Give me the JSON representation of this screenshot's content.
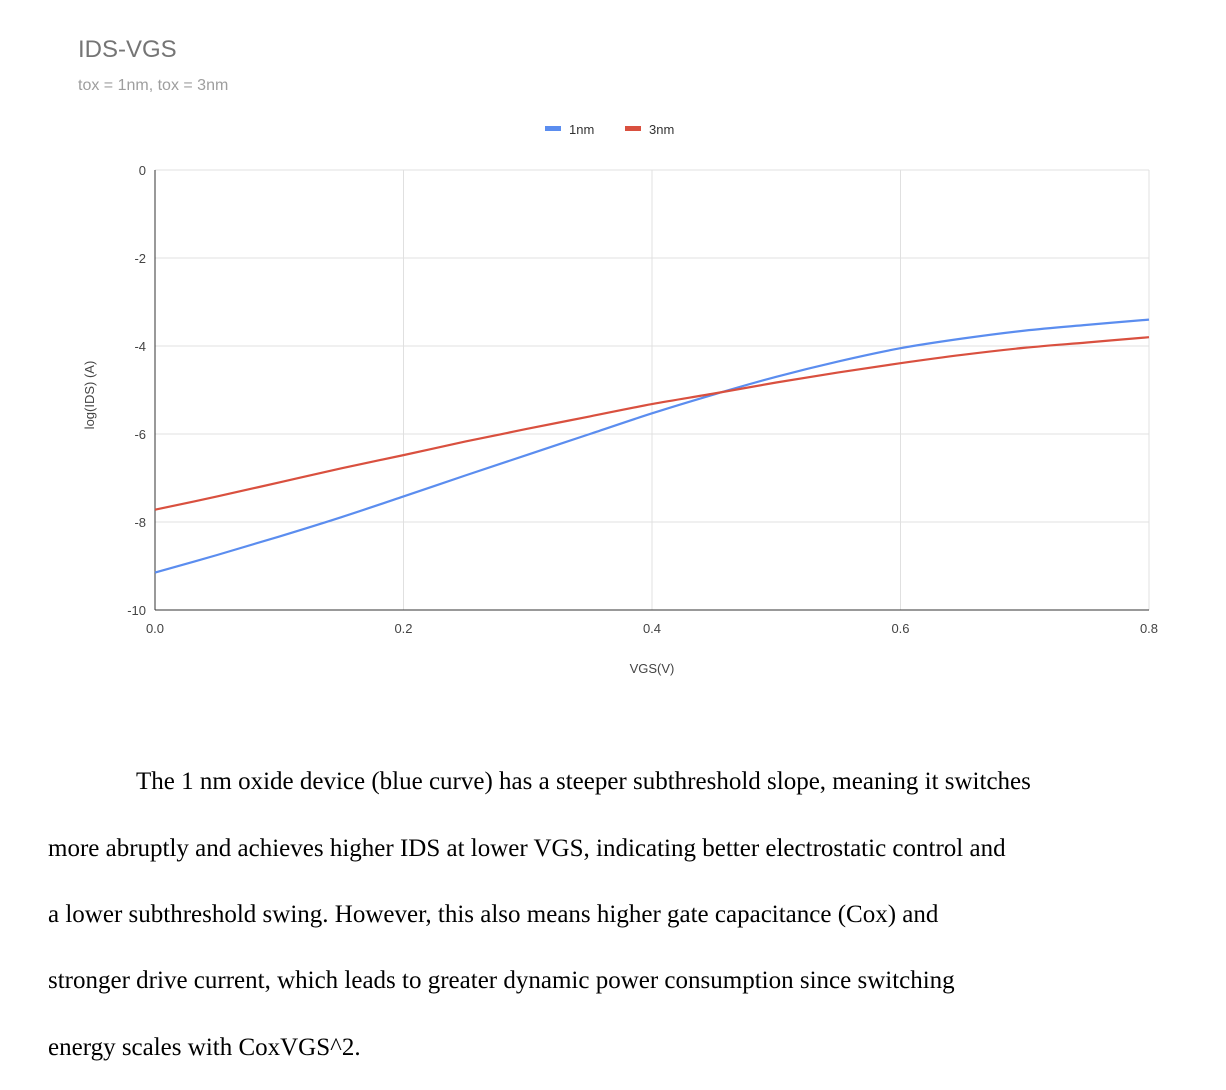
{
  "chart_data": {
    "type": "line",
    "title": "IDS-VGS",
    "subtitle": "tox = 1nm, tox = 3nm",
    "xlabel": "VGS(V)",
    "ylabel": "log(IDS) (A)",
    "xlim": [
      0,
      0.8
    ],
    "ylim": [
      -10,
      0
    ],
    "xticks": [
      "0.0",
      "0.2",
      "0.4",
      "0.6",
      "0.8"
    ],
    "yticks": [
      "0",
      "-2",
      "-4",
      "-6",
      "-8",
      "-10"
    ],
    "grid": true,
    "legend_position": "top",
    "series": [
      {
        "name": "1nm",
        "color": "#5b8def",
        "x": [
          0.0,
          0.05,
          0.1,
          0.15,
          0.2,
          0.25,
          0.3,
          0.35,
          0.4,
          0.45,
          0.5,
          0.55,
          0.6,
          0.65,
          0.7,
          0.75,
          0.8
        ],
        "y": [
          -9.15,
          -8.75,
          -8.33,
          -7.89,
          -7.42,
          -6.94,
          -6.47,
          -6.0,
          -5.53,
          -5.1,
          -4.7,
          -4.35,
          -4.05,
          -3.83,
          -3.65,
          -3.52,
          -3.4
        ]
      },
      {
        "name": "3nm",
        "color": "#d9503f",
        "x": [
          0.0,
          0.05,
          0.1,
          0.15,
          0.2,
          0.25,
          0.3,
          0.35,
          0.4,
          0.45,
          0.5,
          0.55,
          0.6,
          0.65,
          0.7,
          0.75,
          0.8
        ],
        "y": [
          -7.72,
          -7.42,
          -7.1,
          -6.78,
          -6.48,
          -6.17,
          -5.88,
          -5.6,
          -5.32,
          -5.08,
          -4.83,
          -4.6,
          -4.39,
          -4.2,
          -4.04,
          -3.92,
          -3.8
        ]
      }
    ]
  },
  "paragraph": {
    "line1": "The 1 nm oxide device (blue curve) has a steeper subthreshold slope, meaning it switches",
    "line2": "more abruptly and achieves higher IDS at lower VGS, indicating better electrostatic control and",
    "line3": "a lower subthreshold swing. However, this also means higher gate capacitance (Cox) and",
    "line4": "stronger drive current, which leads to greater dynamic power consumption since switching",
    "line5": "energy scales with CoxVGS^2."
  }
}
